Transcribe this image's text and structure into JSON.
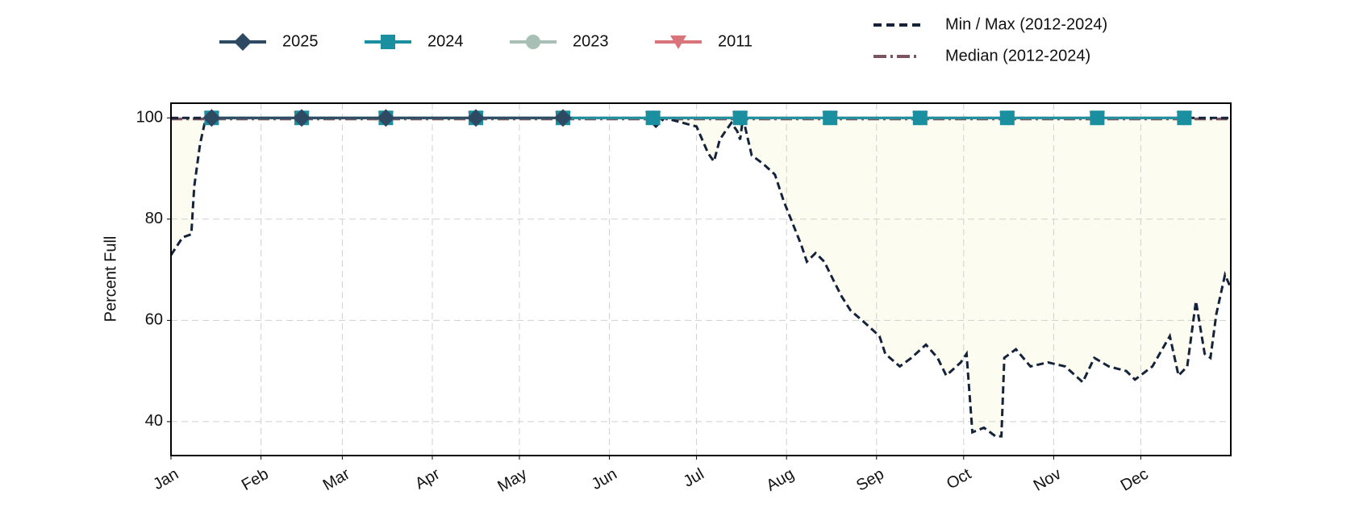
{
  "chart_data": {
    "type": "line",
    "ylabel": "Percent Full",
    "xlim": [
      1,
      366
    ],
    "xticks": [
      {
        "value": 1,
        "label": "Jan"
      },
      {
        "value": 32,
        "label": "Feb"
      },
      {
        "value": 60,
        "label": "Mar"
      },
      {
        "value": 91,
        "label": "Apr"
      },
      {
        "value": 121,
        "label": "May"
      },
      {
        "value": 152,
        "label": "Jun"
      },
      {
        "value": 182,
        "label": "Jul"
      },
      {
        "value": 213,
        "label": "Aug"
      },
      {
        "value": 244,
        "label": "Sep"
      },
      {
        "value": 274,
        "label": "Oct"
      },
      {
        "value": 305,
        "label": "Nov"
      },
      {
        "value": 335,
        "label": "Dec"
      }
    ],
    "ylim": [
      33.3,
      102.9
    ],
    "yticks": [
      40,
      60,
      80,
      100
    ],
    "grid": true,
    "series": [
      {
        "name": "2011",
        "color": "#d9747a",
        "marker": "triangle",
        "x": [
          15,
          46,
          75,
          106,
          136,
          167,
          197,
          228,
          259,
          289,
          320,
          350
        ],
        "values": [
          100,
          100,
          100,
          100,
          100,
          100,
          100,
          100,
          100,
          100,
          100,
          100
        ]
      },
      {
        "name": "2023",
        "color": "#a8bfb5",
        "marker": "circle",
        "x": [
          15,
          46,
          75,
          106,
          136,
          167,
          197,
          228,
          259,
          289,
          320,
          350
        ],
        "values": [
          100,
          100,
          100,
          100,
          100,
          100,
          100,
          100,
          100,
          100,
          100,
          100
        ]
      },
      {
        "name": "2024",
        "color": "#1a8fa0",
        "marker": "square",
        "x": [
          15,
          46,
          75,
          106,
          136,
          167,
          197,
          228,
          259,
          289,
          320,
          350
        ],
        "values": [
          100,
          100,
          100,
          100,
          100,
          100,
          100,
          100,
          100,
          100,
          100,
          100
        ]
      },
      {
        "name": "2025",
        "color": "#2e4a62",
        "marker": "diamond",
        "x": [
          15,
          46,
          75,
          106,
          136
        ],
        "values": [
          100,
          100,
          100,
          100,
          100
        ]
      }
    ],
    "legend_order": [
      3,
      2,
      1,
      0
    ],
    "range_band": {
      "name": "Min / Max (2012-2024)",
      "color": "#14233a",
      "fill": "#fcfcf0",
      "x": [
        1,
        5,
        8,
        9,
        11,
        13,
        60,
        120,
        165,
        168,
        171,
        182,
        186,
        188,
        190,
        192,
        194,
        196,
        197,
        198,
        201,
        205,
        209,
        212,
        215,
        218,
        220,
        223,
        226,
        229,
        232,
        235,
        240,
        245,
        247,
        252,
        256,
        261,
        265,
        268,
        273,
        275,
        277,
        281,
        285,
        287,
        288,
        292,
        297,
        303,
        309,
        315,
        319,
        324,
        330,
        333,
        339,
        345,
        348,
        351,
        354,
        357,
        359,
        361,
        364,
        366
      ],
      "min": [
        72.9,
        76.4,
        77,
        86.4,
        94.8,
        100,
        100,
        100,
        100,
        98.3,
        100,
        98.3,
        93,
        91.4,
        95.7,
        97.4,
        99,
        97.4,
        95.7,
        100,
        92.6,
        90.9,
        88.8,
        83.6,
        79.3,
        75,
        71.6,
        73.3,
        71.6,
        68.1,
        64.7,
        62,
        59.5,
        56.9,
        53.4,
        50.9,
        52.6,
        55.2,
        52.6,
        49.1,
        51.7,
        53.4,
        37.9,
        38.8,
        37.1,
        37.1,
        52.6,
        54.3,
        50.9,
        51.7,
        50.9,
        47.8,
        52.6,
        50.9,
        50,
        48.3,
        50.9,
        56.9,
        49.1,
        50.9,
        63.8,
        53.4,
        52.6,
        61.2,
        69,
        66.4
      ],
      "max": [
        100,
        100,
        100,
        100,
        100,
        100,
        100,
        100,
        100,
        100,
        100,
        100,
        100,
        100,
        100,
        100,
        100,
        100,
        100,
        100,
        100,
        100,
        100,
        100,
        100,
        100,
        100,
        100,
        100,
        100,
        100,
        100,
        100,
        100,
        100,
        100,
        100,
        100,
        100,
        100,
        100,
        100,
        100,
        100,
        100,
        100,
        100,
        100,
        100,
        100,
        100,
        100,
        100,
        100,
        100,
        100,
        100,
        100,
        100,
        100,
        100,
        100,
        100,
        100,
        100,
        100
      ]
    },
    "median": {
      "name": "Median (2012-2024)",
      "color": "#7a5560",
      "x": [
        1,
        366
      ],
      "values": [
        99.8,
        99.8
      ]
    }
  }
}
